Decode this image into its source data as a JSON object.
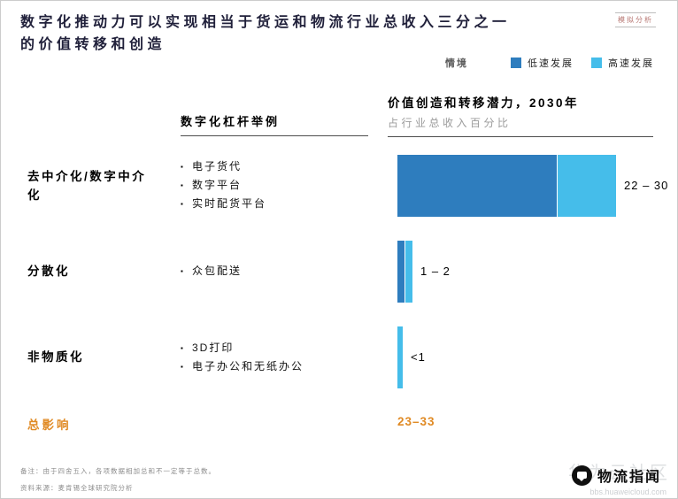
{
  "header": {
    "title_line1": "数字化推动力可以实现相当于货运和物流行业总收入三分之一",
    "title_line2": "的价值转移和创造",
    "tag": "模拟分析"
  },
  "legend": {
    "label": "情境",
    "items": [
      {
        "label": "低速发展",
        "color": "#2E7DBE"
      },
      {
        "label": "高速发展",
        "color": "#45BDEA"
      }
    ]
  },
  "table": {
    "levers_header": "数字化杠杆举例",
    "value_header": "价值创造和转移潜力，2030年",
    "value_subheader": "占行业总收入百分比"
  },
  "rows": [
    {
      "label": "去中介化/数字中介化",
      "bullets": [
        "电子货代",
        "数字平台",
        "实时配货平台"
      ],
      "value_label": "22 – 30"
    },
    {
      "label": "分散化",
      "bullets": [
        "众包配送"
      ],
      "value_label": "1 – 2"
    },
    {
      "label": "非物质化",
      "bullets": [
        "3D打印",
        "电子办公和无纸办公"
      ],
      "value_label": "<1"
    }
  ],
  "chart_data": {
    "type": "bar",
    "orientation": "horizontal",
    "title": "价值创造和转移潜力，2030年",
    "subtitle": "占行业总收入百分比",
    "categories": [
      "去中介化/数字中介化",
      "分散化",
      "非物质化"
    ],
    "series": [
      {
        "name": "低速发展",
        "color": "#2E7DBE",
        "values": [
          22,
          1,
          0
        ]
      },
      {
        "name": "高速发展",
        "color": "#45BDEA",
        "values": [
          8,
          1,
          0.7
        ]
      }
    ],
    "bar_labels": [
      "22 – 30",
      "1 – 2",
      "<1"
    ],
    "xlim": [
      0,
      30
    ],
    "grid": false,
    "legend_position": "top-right",
    "total": {
      "label": "总影响",
      "value": "23–33",
      "color": "#E08A24"
    }
  },
  "total": {
    "label": "总影响",
    "value": "23–33"
  },
  "footnotes": {
    "note": "备注：由于四舍五入，各项数据相加总和不一定等于总数。",
    "source": "资料来源：麦肯锡全球研究院分析"
  },
  "watermark": {
    "brand": "物流指闻",
    "logo_icon": "speech-bubble-icon",
    "faint_text": "华为云社区",
    "faint_url": "bbs.huaweicloud.com"
  }
}
